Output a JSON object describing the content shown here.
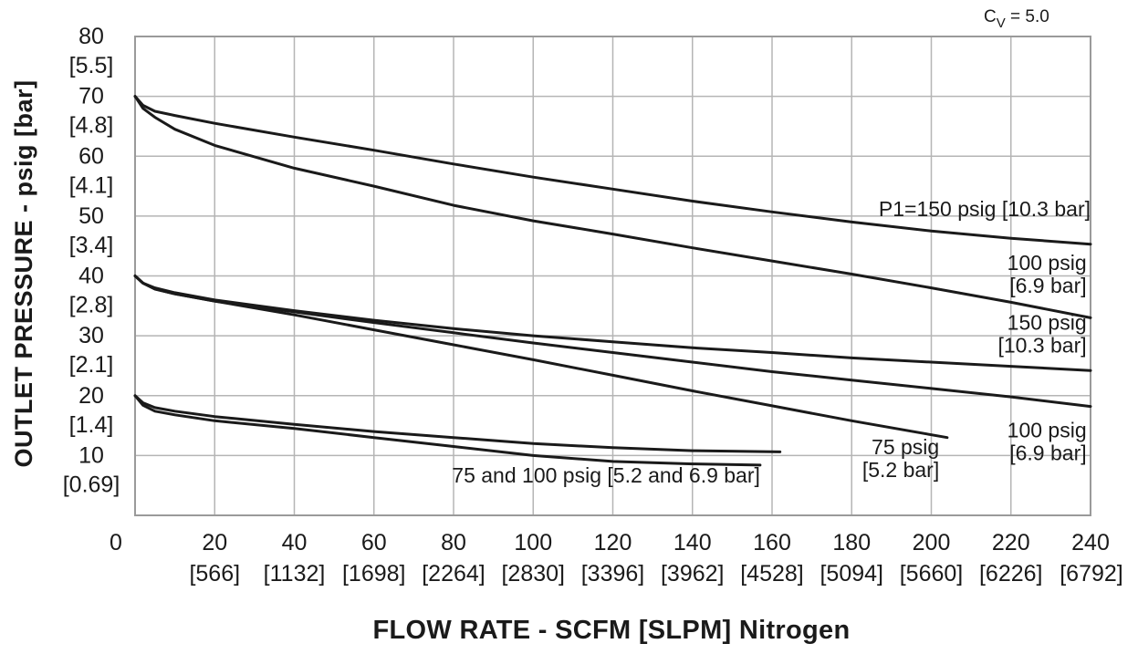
{
  "chart_data": {
    "type": "line",
    "title": "",
    "cv_note": "C",
    "cv_sub": "V",
    "cv_value": " = 5.0",
    "xlabel": "FLOW RATE - SCFM [SLPM] Nitrogen",
    "ylabel": "OUTLET PRESSURE - psig [bar]",
    "xlim": [
      0,
      240
    ],
    "ylim": [
      0,
      80
    ],
    "grid": true,
    "x_ticks": [
      {
        "value": 0,
        "label": "0",
        "sub": ""
      },
      {
        "value": 20,
        "label": "20",
        "sub": "[566]"
      },
      {
        "value": 40,
        "label": "40",
        "sub": "[1132]"
      },
      {
        "value": 60,
        "label": "60",
        "sub": "[1698]"
      },
      {
        "value": 80,
        "label": "80",
        "sub": "[2264]"
      },
      {
        "value": 100,
        "label": "100",
        "sub": "[2830]"
      },
      {
        "value": 120,
        "label": "120",
        "sub": "[3396]"
      },
      {
        "value": 140,
        "label": "140",
        "sub": "[3962]"
      },
      {
        "value": 160,
        "label": "160",
        "sub": "[4528]"
      },
      {
        "value": 180,
        "label": "180",
        "sub": "[5094]"
      },
      {
        "value": 200,
        "label": "200",
        "sub": "[5660]"
      },
      {
        "value": 220,
        "label": "220",
        "sub": "[6226]"
      },
      {
        "value": 240,
        "label": "240",
        "sub": "[6792]"
      }
    ],
    "y_ticks": [
      {
        "value": 10,
        "label": "10",
        "sub": "[0.69]"
      },
      {
        "value": 20,
        "label": "20",
        "sub": "[1.4]"
      },
      {
        "value": 30,
        "label": "30",
        "sub": "[2.1]"
      },
      {
        "value": 40,
        "label": "40",
        "sub": "[2.8]"
      },
      {
        "value": 50,
        "label": "50",
        "sub": "[3.4]"
      },
      {
        "value": 60,
        "label": "60",
        "sub": "[4.1]"
      },
      {
        "value": 70,
        "label": "70",
        "sub": "[4.8]"
      },
      {
        "value": 80,
        "label": "80",
        "sub": "[5.5]"
      }
    ],
    "series": [
      {
        "label": "P1=150 psig [10.3 bar]",
        "set": 70,
        "x": [
          0,
          2,
          5,
          10,
          20,
          40,
          60,
          80,
          100,
          120,
          140,
          160,
          180,
          200,
          220,
          240
        ],
        "y": [
          70,
          68.5,
          67.5,
          66.8,
          65.5,
          63.2,
          61.0,
          58.7,
          56.5,
          54.5,
          52.5,
          50.7,
          49.0,
          47.5,
          46.3,
          45.3
        ]
      },
      {
        "label": "100 psig [6.9 bar]",
        "set": 70,
        "x": [
          0,
          2,
          5,
          10,
          20,
          40,
          60,
          80,
          100,
          120,
          140,
          160,
          180,
          200,
          220,
          240
        ],
        "y": [
          70,
          68.0,
          66.5,
          64.5,
          61.8,
          58.0,
          55.0,
          51.8,
          49.2,
          47.0,
          44.7,
          42.5,
          40.3,
          38.0,
          35.6,
          33.0
        ]
      },
      {
        "label": "150 psig [10.3 bar]",
        "set": 40,
        "x": [
          0,
          2,
          5,
          10,
          20,
          40,
          60,
          80,
          100,
          120,
          140,
          160,
          180,
          200,
          220,
          240
        ],
        "y": [
          40,
          38.8,
          38.0,
          37.2,
          36.0,
          34.2,
          32.6,
          31.2,
          30.0,
          29.0,
          28.0,
          27.2,
          26.3,
          25.6,
          24.9,
          24.2
        ]
      },
      {
        "label": "100 psig [6.9 bar]",
        "set": 40,
        "x": [
          0,
          2,
          5,
          10,
          20,
          40,
          60,
          80,
          100,
          120,
          140,
          160,
          180,
          200,
          220,
          240
        ],
        "y": [
          40,
          38.8,
          37.8,
          37.0,
          35.8,
          34.0,
          32.2,
          30.5,
          28.8,
          27.2,
          25.6,
          24.0,
          22.6,
          21.2,
          19.8,
          18.2
        ]
      },
      {
        "label": "75 psig [5.2 bar]",
        "set": 40,
        "x": [
          0,
          2,
          5,
          10,
          20,
          40,
          60,
          80,
          100,
          120,
          140,
          160,
          180,
          204
        ],
        "y": [
          40,
          38.8,
          37.8,
          37.0,
          35.8,
          33.5,
          31.0,
          28.5,
          26.0,
          23.4,
          20.8,
          18.3,
          15.8,
          13.0
        ]
      },
      {
        "label": "75 and 100 psig [5.2 and 6.9 bar]",
        "set": 20,
        "x": [
          0,
          2,
          5,
          10,
          20,
          40,
          60,
          80,
          100,
          120,
          140,
          162
        ],
        "y": [
          20,
          18.8,
          18.0,
          17.4,
          16.5,
          15.2,
          14.0,
          13.0,
          12.0,
          11.3,
          10.8,
          10.6
        ]
      },
      {
        "label": "",
        "set": 20,
        "x": [
          0,
          2,
          5,
          10,
          20,
          40,
          60,
          80,
          100,
          120,
          140,
          157
        ],
        "y": [
          20,
          18.4,
          17.4,
          16.8,
          15.8,
          14.5,
          13.0,
          11.5,
          10.0,
          9.0,
          8.6,
          8.4
        ]
      }
    ],
    "curve_labels": [
      {
        "lines": [
          "P1=150 psig [10.3 bar]"
        ],
        "x": 240,
        "y": 50,
        "anchor": "end"
      },
      {
        "lines": [
          "100 psig",
          "[6.9 bar]"
        ],
        "x": 239,
        "y": 41,
        "anchor": "end"
      },
      {
        "lines": [
          "150 psig",
          "[10.3 bar]"
        ],
        "x": 239,
        "y": 31,
        "anchor": "end"
      },
      {
        "lines": [
          "100 psig",
          "[6.9 bar]"
        ],
        "x": 239,
        "y": 13,
        "anchor": "end"
      },
      {
        "lines": [
          "75 psig",
          "[5.2 bar]"
        ],
        "x": 202,
        "y": 10.2,
        "anchor": "end"
      },
      {
        "lines": [
          "75 and 100 psig [5.2 and 6.9 bar]"
        ],
        "x": 157,
        "y": 5.5,
        "anchor": "end"
      }
    ],
    "legend": "none",
    "colors": {
      "curve": "#1a1a1a",
      "grid": "#b5b5b5",
      "axis": "#9a9a9a"
    }
  }
}
